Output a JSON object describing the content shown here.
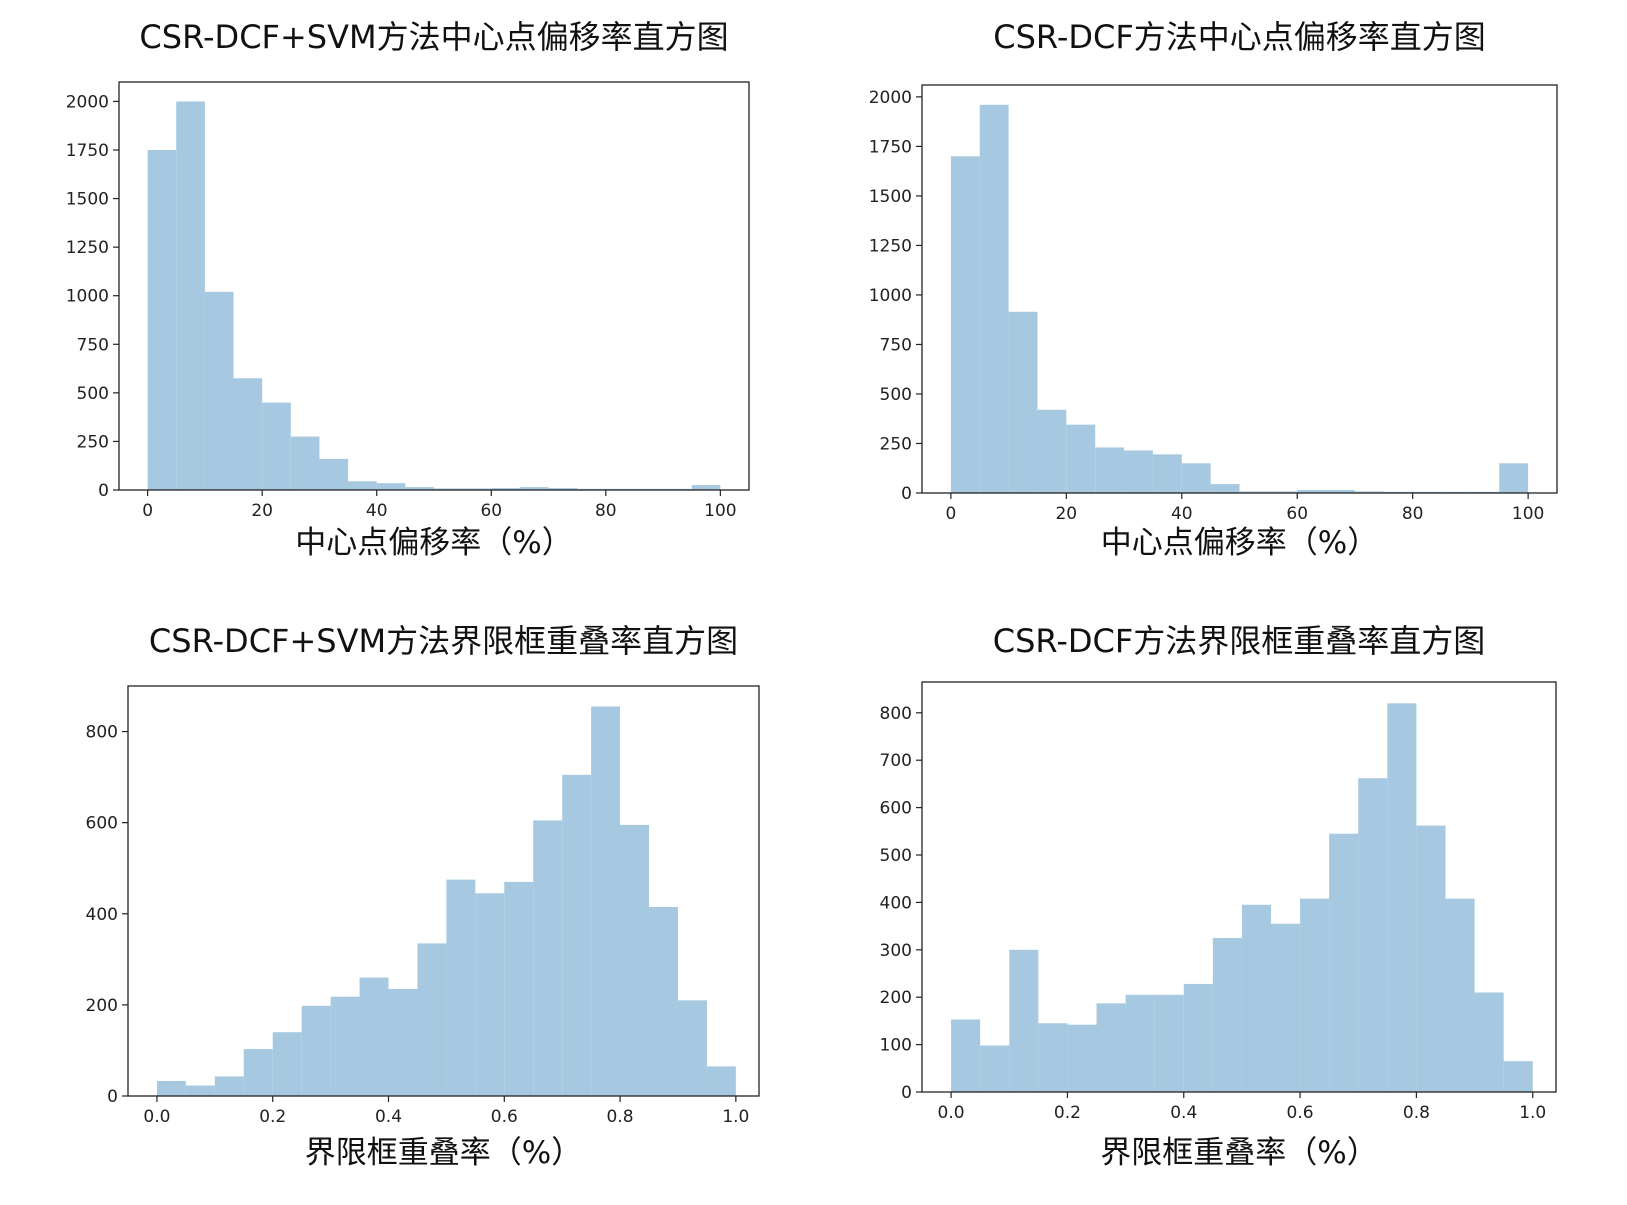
{
  "chart_data": [
    {
      "type": "bar",
      "title": "CSR-DCF+SVM方法中心点偏移率直方图",
      "xlabel": "中心点偏移率（%）",
      "ylabel": "",
      "xlim": [
        -5,
        105
      ],
      "ylim": [
        0,
        2100
      ],
      "xticks": [
        0,
        20,
        40,
        60,
        80,
        100
      ],
      "yticks": [
        0,
        250,
        500,
        750,
        1000,
        1250,
        1500,
        1750,
        2000
      ],
      "bin_edges": [
        0,
        5,
        10,
        15,
        20,
        25,
        30,
        35,
        40,
        45,
        50,
        55,
        60,
        65,
        70,
        75,
        80,
        85,
        90,
        95,
        100
      ],
      "values": [
        1750,
        2000,
        1020,
        575,
        450,
        275,
        160,
        45,
        35,
        15,
        8,
        8,
        10,
        15,
        10,
        6,
        6,
        6,
        6,
        25
      ],
      "grid": false
    },
    {
      "type": "bar",
      "title": "CSR-DCF方法中心点偏移率直方图",
      "xlabel": "中心点偏移率（%）",
      "ylabel": "",
      "xlim": [
        -5,
        105
      ],
      "ylim": [
        0,
        2060
      ],
      "xticks": [
        0,
        20,
        40,
        60,
        80,
        100
      ],
      "yticks": [
        0,
        250,
        500,
        750,
        1000,
        1250,
        1500,
        1750,
        2000
      ],
      "bin_edges": [
        0,
        5,
        10,
        15,
        20,
        25,
        30,
        35,
        40,
        45,
        50,
        55,
        60,
        65,
        70,
        75,
        80,
        85,
        90,
        95,
        100
      ],
      "values": [
        1700,
        1960,
        915,
        420,
        345,
        230,
        215,
        195,
        150,
        45,
        8,
        8,
        15,
        15,
        8,
        6,
        6,
        6,
        6,
        150
      ],
      "grid": false
    },
    {
      "type": "bar",
      "title": "CSR-DCF+SVM方法界限框重叠率直方图",
      "xlabel": "界限框重叠率（%）",
      "ylabel": "",
      "xlim": [
        -0.05,
        1.04
      ],
      "ylim": [
        0,
        900
      ],
      "xticks": [
        0.0,
        0.2,
        0.4,
        0.6,
        0.8,
        1.0
      ],
      "yticks": [
        0,
        200,
        400,
        600,
        800
      ],
      "bin_edges": [
        0.0,
        0.05,
        0.1,
        0.15,
        0.2,
        0.25,
        0.3,
        0.35,
        0.4,
        0.45,
        0.5,
        0.55,
        0.6,
        0.65,
        0.7,
        0.75,
        0.8,
        0.85,
        0.9,
        0.95,
        1.0
      ],
      "values": [
        33,
        23,
        43,
        103,
        140,
        198,
        218,
        260,
        235,
        335,
        475,
        445,
        470,
        605,
        705,
        855,
        595,
        415,
        210,
        65
      ],
      "grid": false
    },
    {
      "type": "bar",
      "title": "CSR-DCF方法界限框重叠率直方图",
      "xlabel": "界限框重叠率（%）",
      "ylabel": "",
      "xlim": [
        -0.05,
        1.04
      ],
      "ylim": [
        0,
        865
      ],
      "xticks": [
        0.0,
        0.2,
        0.4,
        0.6,
        0.8,
        1.0
      ],
      "yticks": [
        0,
        100,
        200,
        300,
        400,
        500,
        600,
        700,
        800
      ],
      "bin_edges": [
        0.0,
        0.05,
        0.1,
        0.15,
        0.2,
        0.25,
        0.3,
        0.35,
        0.4,
        0.45,
        0.5,
        0.55,
        0.6,
        0.65,
        0.7,
        0.75,
        0.8,
        0.85,
        0.9,
        0.95,
        1.0
      ],
      "values": [
        153,
        98,
        300,
        145,
        142,
        187,
        205,
        205,
        228,
        325,
        395,
        355,
        408,
        545,
        662,
        820,
        562,
        408,
        210,
        65
      ],
      "grid": false
    }
  ]
}
